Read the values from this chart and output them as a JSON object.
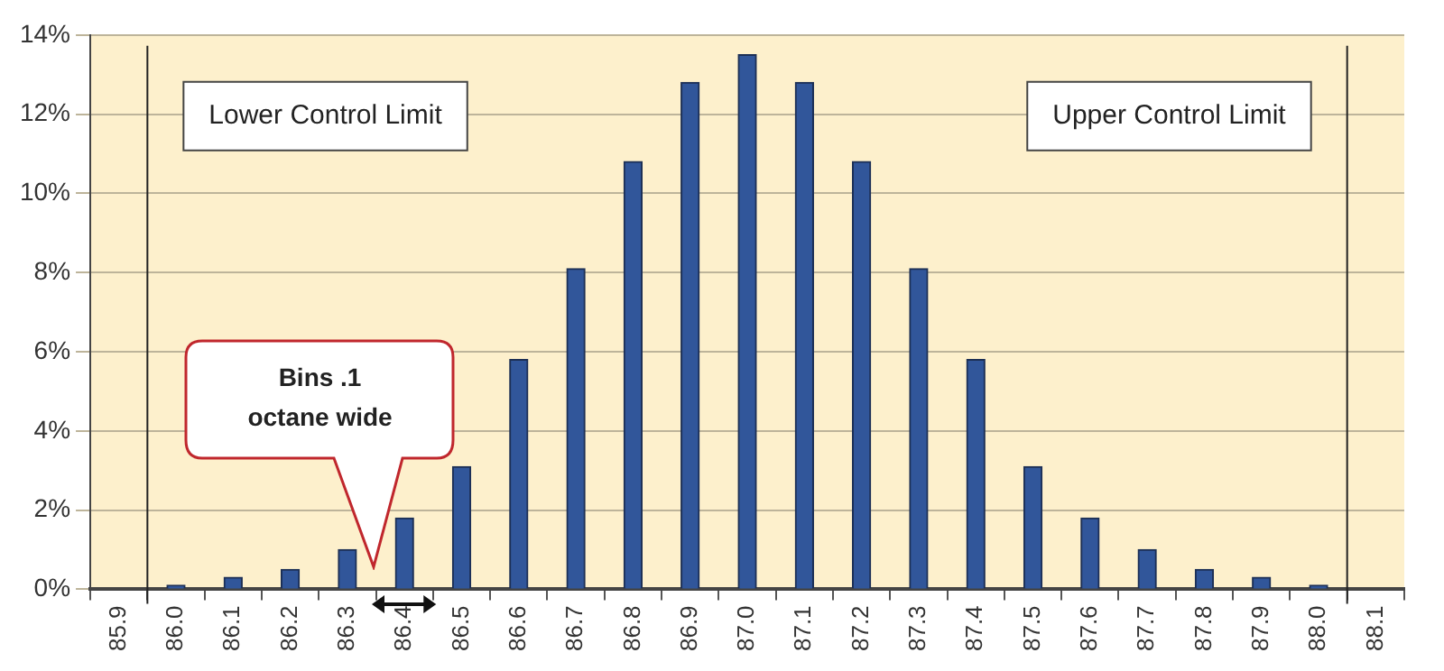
{
  "chart_data": {
    "type": "bar",
    "x": [
      86.0,
      86.1,
      86.2,
      86.3,
      86.4,
      86.5,
      86.6,
      86.7,
      86.8,
      86.9,
      87.0,
      87.1,
      87.2,
      87.3,
      87.4,
      87.5,
      87.6,
      87.7,
      87.8,
      87.9,
      88.0
    ],
    "values": [
      0.1,
      0.3,
      0.5,
      1.0,
      1.8,
      3.1,
      5.8,
      8.1,
      10.8,
      12.8,
      13.5,
      12.8,
      10.8,
      8.1,
      5.8,
      3.1,
      1.8,
      1.0,
      0.5,
      0.3,
      0.1
    ],
    "color": "#31569a",
    "xlim": [
      85.85,
      88.15
    ],
    "xticks": [
      {
        "value": 85.9,
        "label": "85.9"
      },
      {
        "value": 86,
        "label": "86.0"
      },
      {
        "value": 86.1,
        "label": "86.1"
      },
      {
        "value": 86.2,
        "label": "86.2"
      },
      {
        "value": 86.3,
        "label": "86.3"
      },
      {
        "value": 86.4,
        "label": "86.4"
      },
      {
        "value": 86.5,
        "label": "86.5"
      },
      {
        "value": 86.6,
        "label": "86.6"
      },
      {
        "value": 86.7,
        "label": "86.7"
      },
      {
        "value": 86.8,
        "label": "86.8"
      },
      {
        "value": 86.9,
        "label": "86.9"
      },
      {
        "value": 87,
        "label": "87.0"
      },
      {
        "value": 87.1,
        "label": "87.1"
      },
      {
        "value": 87.2,
        "label": "87.2"
      },
      {
        "value": 87.3,
        "label": "87.3"
      },
      {
        "value": 87.4,
        "label": "87.4"
      },
      {
        "value": 87.5,
        "label": "87.5"
      },
      {
        "value": 87.6,
        "label": "87.6"
      },
      {
        "value": 87.7,
        "label": "87.7"
      },
      {
        "value": 87.8,
        "label": "87.8"
      },
      {
        "value": 87.9,
        "label": "87.9"
      },
      {
        "value": 88,
        "label": "88.0"
      },
      {
        "value": 88.1,
        "label": "88.1"
      }
    ],
    "ylim": [
      0,
      14
    ],
    "yticks": [
      {
        "value": 0,
        "label": "0%"
      },
      {
        "value": 2,
        "label": "2%"
      },
      {
        "value": 4,
        "label": "4%"
      },
      {
        "value": 6,
        "label": "6%"
      },
      {
        "value": 8,
        "label": "8%"
      },
      {
        "value": 10,
        "label": "10%"
      },
      {
        "value": 12,
        "label": "12%"
      },
      {
        "value": 14,
        "label": "14%"
      }
    ],
    "grid": "y",
    "legend": false,
    "ref_lines": [
      {
        "axis": "x",
        "value": 85.95,
        "label": "Lower Control Limit",
        "color": "#222222"
      },
      {
        "axis": "x",
        "value": 88.05,
        "label": "Upper Control Limit",
        "color": "#222222"
      }
    ],
    "annotations": [
      "Bins .1 octane wide"
    ]
  }
}
